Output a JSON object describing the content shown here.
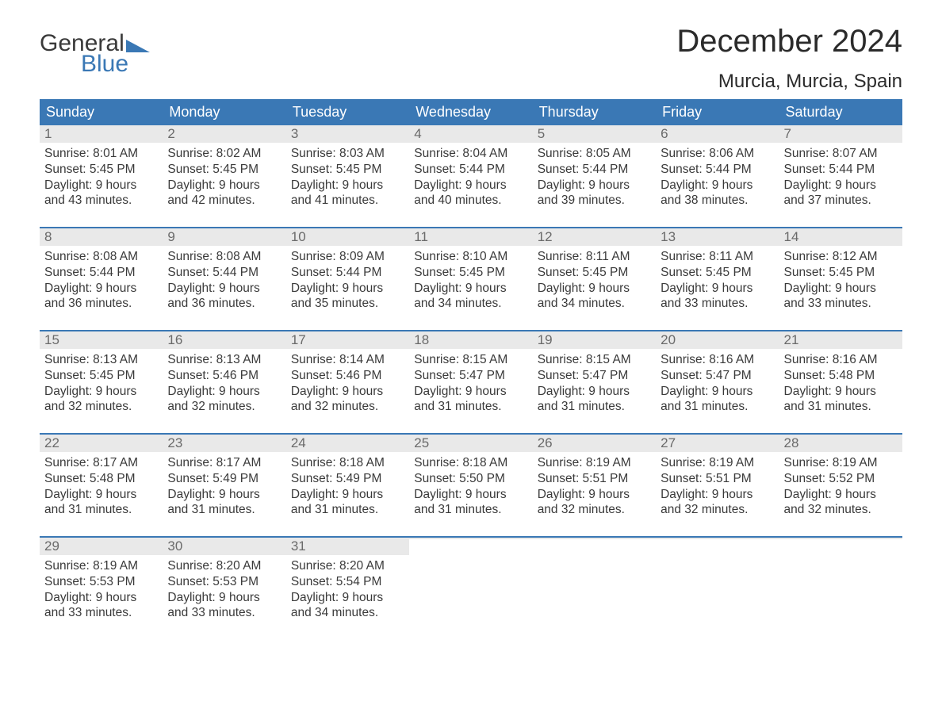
{
  "logo": {
    "word1": "General",
    "word2": "Blue"
  },
  "title": "December 2024",
  "location": "Murcia, Murcia, Spain",
  "colors": {
    "brand_blue": "#3a78b5",
    "header_text": "#ffffff",
    "daynum_bg": "#e9e9e9",
    "daynum_text": "#6a6a6a",
    "body_text": "#3a3a3a",
    "page_bg": "#ffffff",
    "title_text": "#2b2b2b"
  },
  "typography": {
    "title_fontsize_pt": 30,
    "location_fontsize_pt": 18,
    "dayheader_fontsize_pt": 13,
    "daynum_fontsize_pt": 13,
    "body_fontsize_pt": 12
  },
  "day_headers": [
    "Sunday",
    "Monday",
    "Tuesday",
    "Wednesday",
    "Thursday",
    "Friday",
    "Saturday"
  ],
  "weeks": [
    [
      {
        "n": "1",
        "sunrise": "Sunrise: 8:01 AM",
        "sunset": "Sunset: 5:45 PM",
        "d1": "Daylight: 9 hours",
        "d2": "and 43 minutes."
      },
      {
        "n": "2",
        "sunrise": "Sunrise: 8:02 AM",
        "sunset": "Sunset: 5:45 PM",
        "d1": "Daylight: 9 hours",
        "d2": "and 42 minutes."
      },
      {
        "n": "3",
        "sunrise": "Sunrise: 8:03 AM",
        "sunset": "Sunset: 5:45 PM",
        "d1": "Daylight: 9 hours",
        "d2": "and 41 minutes."
      },
      {
        "n": "4",
        "sunrise": "Sunrise: 8:04 AM",
        "sunset": "Sunset: 5:44 PM",
        "d1": "Daylight: 9 hours",
        "d2": "and 40 minutes."
      },
      {
        "n": "5",
        "sunrise": "Sunrise: 8:05 AM",
        "sunset": "Sunset: 5:44 PM",
        "d1": "Daylight: 9 hours",
        "d2": "and 39 minutes."
      },
      {
        "n": "6",
        "sunrise": "Sunrise: 8:06 AM",
        "sunset": "Sunset: 5:44 PM",
        "d1": "Daylight: 9 hours",
        "d2": "and 38 minutes."
      },
      {
        "n": "7",
        "sunrise": "Sunrise: 8:07 AM",
        "sunset": "Sunset: 5:44 PM",
        "d1": "Daylight: 9 hours",
        "d2": "and 37 minutes."
      }
    ],
    [
      {
        "n": "8",
        "sunrise": "Sunrise: 8:08 AM",
        "sunset": "Sunset: 5:44 PM",
        "d1": "Daylight: 9 hours",
        "d2": "and 36 minutes."
      },
      {
        "n": "9",
        "sunrise": "Sunrise: 8:08 AM",
        "sunset": "Sunset: 5:44 PM",
        "d1": "Daylight: 9 hours",
        "d2": "and 36 minutes."
      },
      {
        "n": "10",
        "sunrise": "Sunrise: 8:09 AM",
        "sunset": "Sunset: 5:44 PM",
        "d1": "Daylight: 9 hours",
        "d2": "and 35 minutes."
      },
      {
        "n": "11",
        "sunrise": "Sunrise: 8:10 AM",
        "sunset": "Sunset: 5:45 PM",
        "d1": "Daylight: 9 hours",
        "d2": "and 34 minutes."
      },
      {
        "n": "12",
        "sunrise": "Sunrise: 8:11 AM",
        "sunset": "Sunset: 5:45 PM",
        "d1": "Daylight: 9 hours",
        "d2": "and 34 minutes."
      },
      {
        "n": "13",
        "sunrise": "Sunrise: 8:11 AM",
        "sunset": "Sunset: 5:45 PM",
        "d1": "Daylight: 9 hours",
        "d2": "and 33 minutes."
      },
      {
        "n": "14",
        "sunrise": "Sunrise: 8:12 AM",
        "sunset": "Sunset: 5:45 PM",
        "d1": "Daylight: 9 hours",
        "d2": "and 33 minutes."
      }
    ],
    [
      {
        "n": "15",
        "sunrise": "Sunrise: 8:13 AM",
        "sunset": "Sunset: 5:45 PM",
        "d1": "Daylight: 9 hours",
        "d2": "and 32 minutes."
      },
      {
        "n": "16",
        "sunrise": "Sunrise: 8:13 AM",
        "sunset": "Sunset: 5:46 PM",
        "d1": "Daylight: 9 hours",
        "d2": "and 32 minutes."
      },
      {
        "n": "17",
        "sunrise": "Sunrise: 8:14 AM",
        "sunset": "Sunset: 5:46 PM",
        "d1": "Daylight: 9 hours",
        "d2": "and 32 minutes."
      },
      {
        "n": "18",
        "sunrise": "Sunrise: 8:15 AM",
        "sunset": "Sunset: 5:47 PM",
        "d1": "Daylight: 9 hours",
        "d2": "and 31 minutes."
      },
      {
        "n": "19",
        "sunrise": "Sunrise: 8:15 AM",
        "sunset": "Sunset: 5:47 PM",
        "d1": "Daylight: 9 hours",
        "d2": "and 31 minutes."
      },
      {
        "n": "20",
        "sunrise": "Sunrise: 8:16 AM",
        "sunset": "Sunset: 5:47 PM",
        "d1": "Daylight: 9 hours",
        "d2": "and 31 minutes."
      },
      {
        "n": "21",
        "sunrise": "Sunrise: 8:16 AM",
        "sunset": "Sunset: 5:48 PM",
        "d1": "Daylight: 9 hours",
        "d2": "and 31 minutes."
      }
    ],
    [
      {
        "n": "22",
        "sunrise": "Sunrise: 8:17 AM",
        "sunset": "Sunset: 5:48 PM",
        "d1": "Daylight: 9 hours",
        "d2": "and 31 minutes."
      },
      {
        "n": "23",
        "sunrise": "Sunrise: 8:17 AM",
        "sunset": "Sunset: 5:49 PM",
        "d1": "Daylight: 9 hours",
        "d2": "and 31 minutes."
      },
      {
        "n": "24",
        "sunrise": "Sunrise: 8:18 AM",
        "sunset": "Sunset: 5:49 PM",
        "d1": "Daylight: 9 hours",
        "d2": "and 31 minutes."
      },
      {
        "n": "25",
        "sunrise": "Sunrise: 8:18 AM",
        "sunset": "Sunset: 5:50 PM",
        "d1": "Daylight: 9 hours",
        "d2": "and 31 minutes."
      },
      {
        "n": "26",
        "sunrise": "Sunrise: 8:19 AM",
        "sunset": "Sunset: 5:51 PM",
        "d1": "Daylight: 9 hours",
        "d2": "and 32 minutes."
      },
      {
        "n": "27",
        "sunrise": "Sunrise: 8:19 AM",
        "sunset": "Sunset: 5:51 PM",
        "d1": "Daylight: 9 hours",
        "d2": "and 32 minutes."
      },
      {
        "n": "28",
        "sunrise": "Sunrise: 8:19 AM",
        "sunset": "Sunset: 5:52 PM",
        "d1": "Daylight: 9 hours",
        "d2": "and 32 minutes."
      }
    ],
    [
      {
        "n": "29",
        "sunrise": "Sunrise: 8:19 AM",
        "sunset": "Sunset: 5:53 PM",
        "d1": "Daylight: 9 hours",
        "d2": "and 33 minutes."
      },
      {
        "n": "30",
        "sunrise": "Sunrise: 8:20 AM",
        "sunset": "Sunset: 5:53 PM",
        "d1": "Daylight: 9 hours",
        "d2": "and 33 minutes."
      },
      {
        "n": "31",
        "sunrise": "Sunrise: 8:20 AM",
        "sunset": "Sunset: 5:54 PM",
        "d1": "Daylight: 9 hours",
        "d2": "and 34 minutes."
      },
      {
        "n": "",
        "empty": true
      },
      {
        "n": "",
        "empty": true
      },
      {
        "n": "",
        "empty": true
      },
      {
        "n": "",
        "empty": true
      }
    ]
  ]
}
